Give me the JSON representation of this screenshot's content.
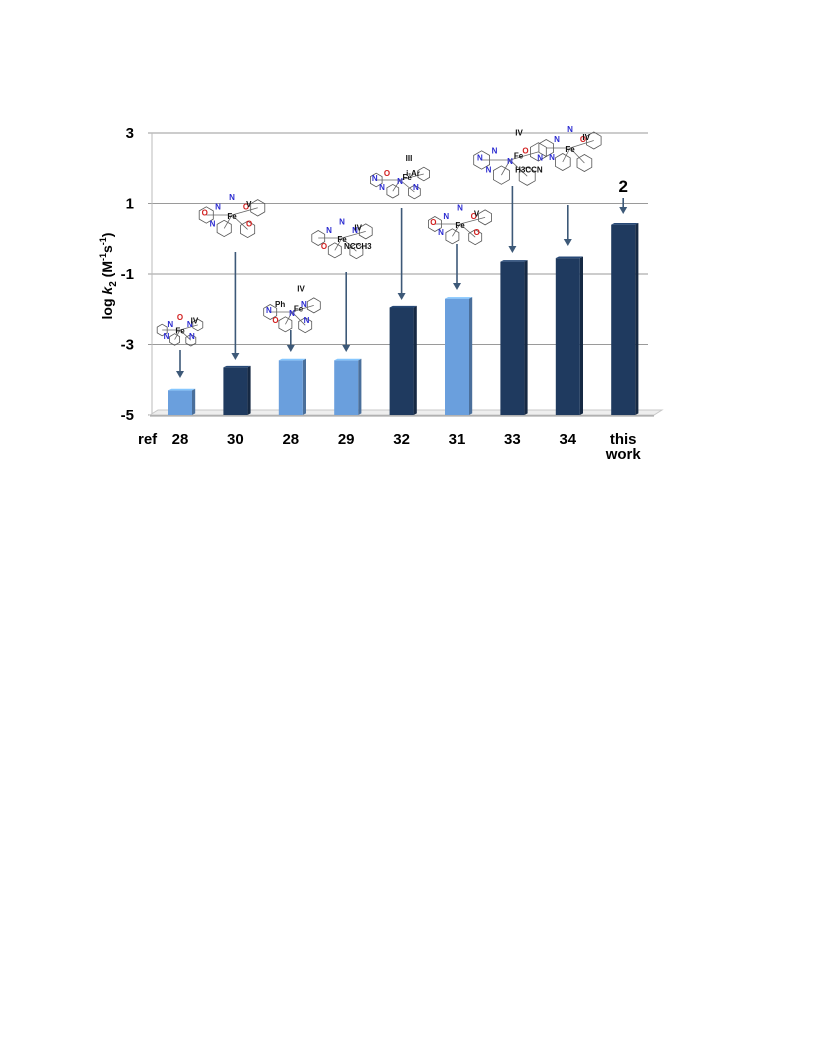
{
  "chart_data": {
    "type": "bar",
    "ylabel": "log k2 (M-1s-1)",
    "ylabel_parts": {
      "prefix": "log ",
      "k": "k",
      "sub": "2",
      "unit_open": " (M",
      "sup1": "-1",
      "unit_mid": "s",
      "sup2": "-1",
      "unit_close": ")"
    },
    "x_prefix_label": "ref",
    "categories": [
      "28",
      "30",
      "28",
      "29",
      "32",
      "31",
      "33",
      "34",
      "this work"
    ],
    "values": [
      -4.3,
      -3.65,
      -3.45,
      -3.45,
      -1.95,
      -1.7,
      -0.65,
      -0.55,
      0.4
    ],
    "bar_colors": [
      "#6a9fdd",
      "#1f3a5f",
      "#6a9fdd",
      "#6a9fdd",
      "#1f3a5f",
      "#6a9fdd",
      "#1f3a5f",
      "#1f3a5f",
      "#1f3a5f"
    ],
    "ylim": [
      -5,
      3
    ],
    "yticks": [
      3,
      1,
      -1,
      -3,
      -5
    ],
    "ytick_labels": [
      "3",
      "1",
      "-1",
      "-3",
      "-5"
    ],
    "grid": true,
    "annotations": [
      {
        "text": "2",
        "category_index": 8
      }
    ],
    "chem_labels": [
      [
        "N",
        "N",
        "Fe",
        "IV",
        "O",
        "N",
        "N"
      ],
      [
        "N",
        "O",
        "Fe",
        "V",
        "N",
        "N",
        "O",
        "O"
      ],
      [
        "Ph",
        "N",
        "N",
        "Fe",
        "IV",
        "O",
        "N",
        "N"
      ],
      [
        "N",
        "N",
        "Fe",
        "IV",
        "N",
        "O",
        "NCCH3"
      ],
      [
        "O",
        "i-Ar",
        "N",
        "Fe",
        "III",
        "N",
        "N",
        "N"
      ],
      [
        "N",
        "O",
        "Fe",
        "V",
        "N",
        "N",
        "O",
        "O"
      ],
      [
        "N",
        "O",
        "N",
        "Fe",
        "IV",
        "N",
        "H3CCN",
        "N",
        "N"
      ],
      [
        "N",
        "O",
        "Fe",
        "IV",
        "N",
        "N"
      ]
    ]
  }
}
